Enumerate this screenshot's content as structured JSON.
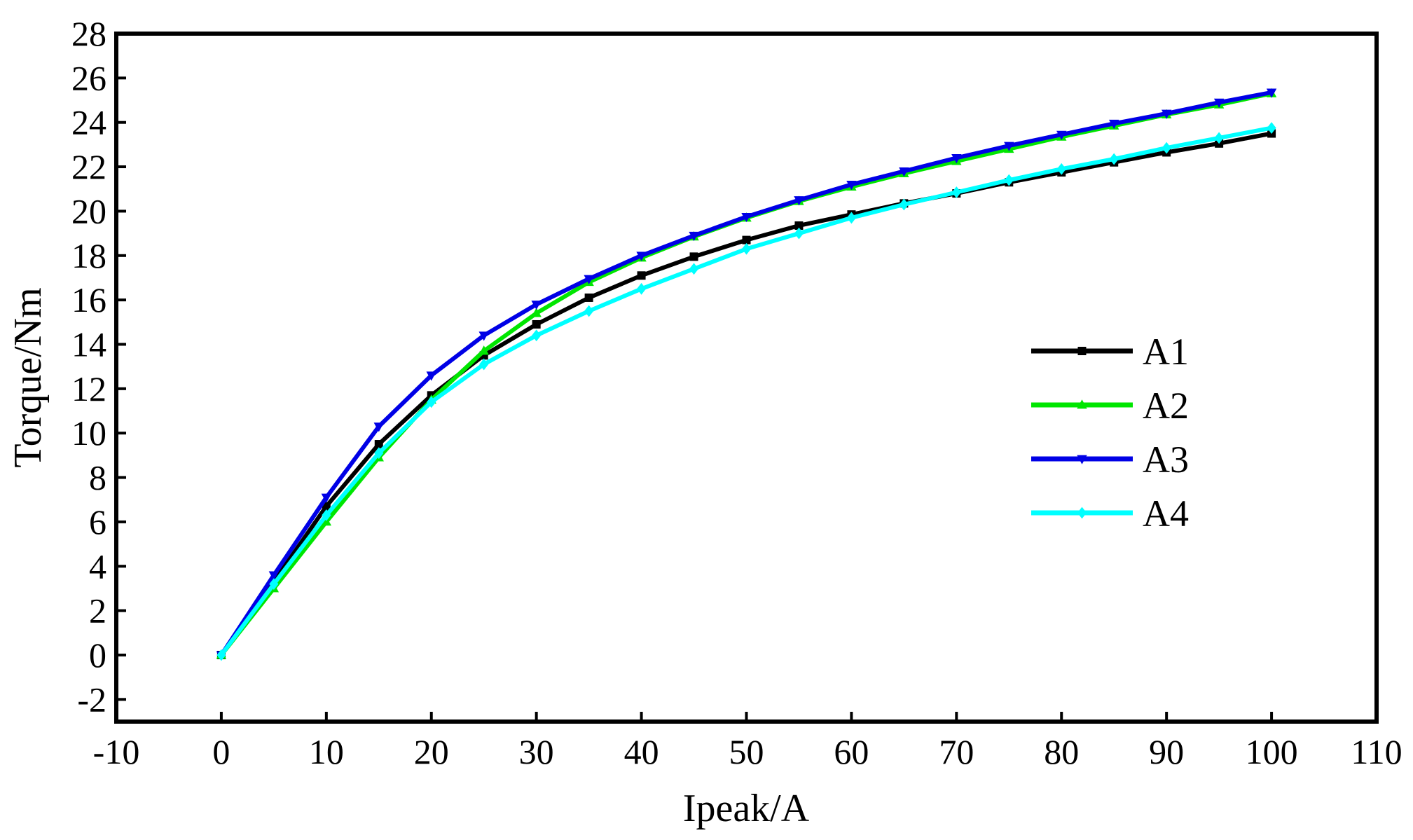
{
  "chart_data": {
    "type": "line",
    "title": "",
    "xlabel": "Ipeak/A",
    "ylabel": "Torque/Nm",
    "xlim": [
      -10,
      110
    ],
    "ylim": [
      -3,
      28
    ],
    "x_ticks": [
      -10,
      0,
      10,
      20,
      30,
      40,
      50,
      60,
      70,
      80,
      90,
      100,
      110
    ],
    "y_ticks": [
      -2,
      0,
      2,
      4,
      6,
      8,
      10,
      12,
      14,
      16,
      18,
      20,
      22,
      24,
      26,
      28
    ],
    "x_tick_labels": [
      "-10",
      "0",
      "10",
      "20",
      "30",
      "40",
      "50",
      "60",
      "70",
      "80",
      "90",
      "100",
      "110"
    ],
    "y_tick_labels": [
      "-2",
      "0",
      "2",
      "4",
      "6",
      "8",
      "10",
      "12",
      "14",
      "16",
      "18",
      "20",
      "22",
      "24",
      "26",
      "28"
    ],
    "grid": false,
    "legend_position": "right",
    "x": [
      0,
      5,
      10,
      15,
      20,
      25,
      30,
      35,
      40,
      45,
      50,
      55,
      60,
      65,
      70,
      75,
      80,
      85,
      90,
      95,
      100
    ],
    "series": [
      {
        "name": "A1",
        "color": "#000000",
        "marker": "square",
        "values": [
          0,
          3.3,
          6.7,
          9.5,
          11.7,
          13.5,
          14.9,
          16.1,
          17.1,
          17.95,
          18.7,
          19.35,
          19.85,
          20.35,
          20.8,
          21.3,
          21.75,
          22.2,
          22.65,
          23.05,
          23.5
        ]
      },
      {
        "name": "A2",
        "color": "#00e600",
        "marker": "triangle-up",
        "values": [
          0,
          3.0,
          6.0,
          8.9,
          11.5,
          13.7,
          15.4,
          16.8,
          17.9,
          18.85,
          19.7,
          20.45,
          21.1,
          21.7,
          22.25,
          22.8,
          23.35,
          23.85,
          24.35,
          24.8,
          25.3
        ]
      },
      {
        "name": "A3",
        "color": "#0000e6",
        "marker": "triangle-down",
        "values": [
          0,
          3.6,
          7.1,
          10.3,
          12.6,
          14.4,
          15.8,
          16.95,
          18.0,
          18.9,
          19.75,
          20.5,
          21.2,
          21.8,
          22.4,
          22.95,
          23.45,
          23.95,
          24.4,
          24.9,
          25.35
        ]
      },
      {
        "name": "A4",
        "color": "#00ffff",
        "marker": "diamond",
        "values": [
          0,
          3.2,
          6.3,
          9.1,
          11.4,
          13.1,
          14.4,
          15.5,
          16.5,
          17.4,
          18.3,
          19.0,
          19.7,
          20.3,
          20.85,
          21.4,
          21.9,
          22.35,
          22.85,
          23.3,
          23.75
        ]
      }
    ]
  }
}
